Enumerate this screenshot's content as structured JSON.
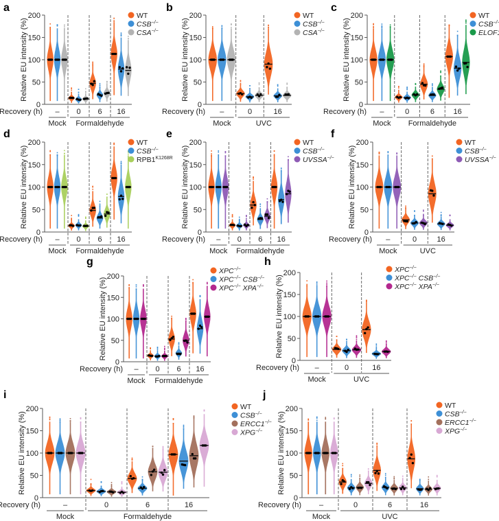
{
  "recovery_label": "Recovery (h)",
  "chart_data": [
    {
      "panel": "a",
      "type": "violin",
      "ylabel": "Relative EU intensity (%)",
      "ylim": [
        0,
        200
      ],
      "yticks": [
        0,
        50,
        100,
        150,
        200
      ],
      "groups": [
        "–",
        "0",
        "6",
        "16"
      ],
      "treatments": [
        {
          "label": "Mock",
          "groups": 1
        },
        {
          "label": "Formaldehyde",
          "groups": 3
        }
      ],
      "series": [
        {
          "name": "WT",
          "sup": "",
          "italic": false,
          "color": "#f26522",
          "medians": [
            100,
            14,
            47,
            113
          ]
        },
        {
          "name": "CSB",
          "sup": "−/−",
          "italic": true,
          "color": "#3d8fd6",
          "medians": [
            100,
            11,
            21,
            79
          ]
        },
        {
          "name": "CSA",
          "sup": "−/−",
          "italic": true,
          "color": "#b3b3b3",
          "medians": [
            100,
            12,
            25,
            76
          ]
        }
      ]
    },
    {
      "panel": "b",
      "type": "violin",
      "ylabel": "Relative EU intensity (%)",
      "ylim": [
        0,
        200
      ],
      "yticks": [
        0,
        50,
        100,
        150,
        200
      ],
      "groups": [
        "–",
        "0",
        "16"
      ],
      "treatments": [
        {
          "label": "Mock",
          "groups": 1
        },
        {
          "label": "UVC",
          "groups": 2
        }
      ],
      "series": [
        {
          "name": "WT",
          "sup": "",
          "italic": false,
          "color": "#f26522",
          "medians": [
            100,
            24,
            90
          ]
        },
        {
          "name": "CSB",
          "sup": "−/−",
          "italic": true,
          "color": "#3d8fd6",
          "medians": [
            100,
            17,
            19
          ]
        },
        {
          "name": "CSA",
          "sup": "−/−",
          "italic": true,
          "color": "#b3b3b3",
          "medians": [
            100,
            20,
            20
          ]
        }
      ]
    },
    {
      "panel": "c",
      "type": "violin",
      "ylabel": "Relative EU intensity (%)",
      "ylim": [
        0,
        200
      ],
      "yticks": [
        0,
        50,
        100,
        150,
        200
      ],
      "groups": [
        "–",
        "0",
        "6",
        "16"
      ],
      "treatments": [
        {
          "label": "Mock",
          "groups": 1
        },
        {
          "label": "Formaldehyde",
          "groups": 3
        }
      ],
      "series": [
        {
          "name": "WT",
          "sup": "",
          "italic": false,
          "color": "#f26522",
          "medians": [
            100,
            16,
            45,
            107
          ]
        },
        {
          "name": "CSB",
          "sup": "−/−",
          "italic": true,
          "color": "#3d8fd6",
          "medians": [
            100,
            15,
            20,
            81
          ]
        },
        {
          "name": "ELOF1",
          "sup": "−/−",
          "italic": true,
          "color": "#1a9a4a",
          "medians": [
            100,
            21,
            34,
            94
          ]
        }
      ]
    },
    {
      "panel": "d",
      "type": "violin",
      "ylabel": "Relative EU intensity (%)",
      "ylim": [
        0,
        200
      ],
      "yticks": [
        0,
        50,
        100,
        150,
        200
      ],
      "groups": [
        "–",
        "0",
        "6",
        "16"
      ],
      "treatments": [
        {
          "label": "Mock",
          "groups": 1
        },
        {
          "label": "Formaldehyde",
          "groups": 3
        }
      ],
      "series": [
        {
          "name": "WT",
          "sup": "",
          "italic": false,
          "color": "#f26522",
          "medians": [
            100,
            14,
            48,
            120
          ]
        },
        {
          "name": "CSB",
          "sup": "−/−",
          "italic": true,
          "color": "#3d8fd6",
          "medians": [
            100,
            15,
            31,
            79
          ]
        },
        {
          "name": "RPB1",
          "sup": "K1268R",
          "italic": false,
          "color": "#a9cf5c",
          "medians": [
            100,
            13,
            40,
            100
          ]
        }
      ]
    },
    {
      "panel": "e",
      "type": "violin",
      "ylabel": "Relative EU intensity (%)",
      "ylim": [
        0,
        200
      ],
      "yticks": [
        0,
        50,
        100,
        150,
        200
      ],
      "groups": [
        "–",
        "0",
        "6",
        "16"
      ],
      "treatments": [
        {
          "label": "Mock",
          "groups": 1
        },
        {
          "label": "Formaldehyde",
          "groups": 3
        }
      ],
      "series": [
        {
          "name": "WT",
          "sup": "",
          "italic": false,
          "color": "#f26522",
          "medians": [
            100,
            15,
            60,
            100
          ]
        },
        {
          "name": "CSB",
          "sup": "−/−",
          "italic": true,
          "color": "#3d8fd6",
          "medians": [
            100,
            14,
            28,
            72
          ]
        },
        {
          "name": "UVSSA",
          "sup": "−/−",
          "italic": true,
          "color": "#8e5bb5",
          "medians": [
            100,
            15,
            35,
            85
          ]
        }
      ]
    },
    {
      "panel": "f",
      "type": "violin",
      "ylabel": "Relative EU intensity (%)",
      "ylim": [
        0,
        200
      ],
      "yticks": [
        0,
        50,
        100,
        150,
        200
      ],
      "groups": [
        "–",
        "0",
        "16"
      ],
      "treatments": [
        {
          "label": "Mock",
          "groups": 1
        },
        {
          "label": "UVC",
          "groups": 2
        }
      ],
      "series": [
        {
          "name": "WT",
          "sup": "",
          "italic": false,
          "color": "#f26522",
          "medians": [
            100,
            27,
            85
          ]
        },
        {
          "name": "CSB",
          "sup": "−/−",
          "italic": true,
          "color": "#3d8fd6",
          "medians": [
            100,
            20,
            18
          ]
        },
        {
          "name": "UVSSA",
          "sup": "−/−",
          "italic": true,
          "color": "#8e5bb5",
          "medians": [
            100,
            20,
            15
          ]
        }
      ]
    },
    {
      "panel": "g",
      "type": "violin",
      "ylabel": "Relative EU intensity (%)",
      "ylim": [
        0,
        200
      ],
      "yticks": [
        0,
        50,
        100,
        150,
        200
      ],
      "groups": [
        "–",
        "0",
        "6",
        "16"
      ],
      "treatments": [
        {
          "label": "Mock",
          "groups": 1
        },
        {
          "label": "Formaldehyde",
          "groups": 3
        }
      ],
      "series": [
        {
          "name": "XPC",
          "sup": "−/−",
          "italic": true,
          "color": "#f26522",
          "medians": [
            100,
            14,
            53,
            112
          ]
        },
        {
          "name": "XPC",
          "sup": "−/−",
          "name2": "CSB",
          "sup2": "−/−",
          "italic": true,
          "color": "#3d8fd6",
          "medians": [
            100,
            13,
            20,
            77
          ]
        },
        {
          "name": "XPC",
          "sup": "−/−",
          "name2": "XPA",
          "sup2": "−/−",
          "italic": true,
          "color": "#b3288e",
          "medians": [
            100,
            13,
            50,
            105
          ]
        }
      ]
    },
    {
      "panel": "h",
      "type": "violin",
      "ylabel": "Relative EU intensity (%)",
      "ylim": [
        0,
        200
      ],
      "yticks": [
        0,
        50,
        100,
        150,
        200
      ],
      "groups": [
        "–",
        "0",
        "16"
      ],
      "treatments": [
        {
          "label": "Mock",
          "groups": 1
        },
        {
          "label": "UVC",
          "groups": 2
        }
      ],
      "series": [
        {
          "name": "XPC",
          "sup": "−/−",
          "italic": true,
          "color": "#f26522",
          "medians": [
            100,
            25,
            70
          ]
        },
        {
          "name": "XPC",
          "sup": "−/−",
          "name2": "CSB",
          "sup2": "−/−",
          "italic": true,
          "color": "#3d8fd6",
          "medians": [
            100,
            22,
            15
          ]
        },
        {
          "name": "XPC",
          "sup": "−/−",
          "name2": "XPA",
          "sup2": "−/−",
          "italic": true,
          "color": "#b3288e",
          "medians": [
            100,
            24,
            20
          ]
        }
      ]
    },
    {
      "panel": "i",
      "type": "violin",
      "ylabel": "Relative EU intensity (%)",
      "ylim": [
        0,
        200
      ],
      "yticks": [
        0,
        50,
        100,
        150,
        200
      ],
      "groups": [
        "–",
        "0",
        "6",
        "16"
      ],
      "treatments": [
        {
          "label": "Mock",
          "groups": 1
        },
        {
          "label": "Formaldehyde",
          "groups": 3
        }
      ],
      "series": [
        {
          "name": "WT",
          "sup": "",
          "italic": false,
          "color": "#f26522",
          "medians": [
            100,
            16,
            43,
            97
          ]
        },
        {
          "name": "CSB",
          "sup": "−/−",
          "italic": true,
          "color": "#3d8fd6",
          "medians": [
            100,
            14,
            21,
            82
          ]
        },
        {
          "name": "ERCC1",
          "sup": "−/−",
          "italic": true,
          "color": "#a3705c",
          "medians": [
            100,
            13,
            58,
            94
          ]
        },
        {
          "name": "XPG",
          "sup": "−/−",
          "italic": true,
          "color": "#d8a8d4",
          "medians": [
            100,
            12,
            57,
            117
          ]
        }
      ]
    },
    {
      "panel": "j",
      "type": "violin",
      "ylabel": "Relative EU intensity (%)",
      "ylim": [
        0,
        200
      ],
      "yticks": [
        0,
        50,
        100,
        150,
        200
      ],
      "groups": [
        "–",
        "0",
        "6",
        "16"
      ],
      "treatments": [
        {
          "label": "Mock",
          "groups": 1
        },
        {
          "label": "UVC",
          "groups": 3
        }
      ],
      "series": [
        {
          "name": "WT",
          "sup": "",
          "italic": false,
          "color": "#f26522",
          "medians": [
            100,
            35,
            61,
            87
          ]
        },
        {
          "name": "CSB",
          "sup": "−/−",
          "italic": true,
          "color": "#3d8fd6",
          "medians": [
            100,
            22,
            23,
            20
          ]
        },
        {
          "name": "ERCC1",
          "sup": "−/−",
          "italic": true,
          "color": "#a3705c",
          "medians": [
            100,
            23,
            21,
            19
          ]
        },
        {
          "name": "XPG",
          "sup": "−/−",
          "italic": true,
          "color": "#d8a8d4",
          "medians": [
            100,
            32,
            22,
            21
          ]
        }
      ]
    }
  ]
}
